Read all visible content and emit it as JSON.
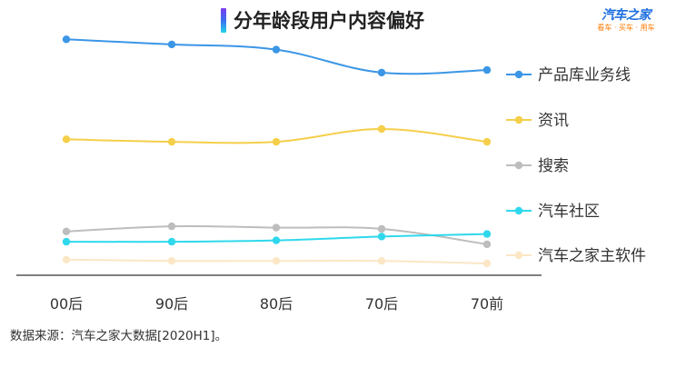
{
  "header": {
    "title": "分年龄段用户内容偏好",
    "brand_name": "汽车之家",
    "brand_tagline": "看车 · 买车 · 用车"
  },
  "footer": {
    "source": "数据来源：汽车之家大数据[2020H1]。"
  },
  "colors": {
    "产品库业务线": "#3b96e6",
    "资讯": "#f5cf4a",
    "搜索": "#bdbdbd",
    "汽车社区": "#2fd8ec",
    "汽车之家主软件": "#fbe7c6"
  },
  "chart_data": {
    "type": "line",
    "title": "分年龄段用户内容偏好",
    "categories": [
      "00后",
      "90后",
      "80后",
      "70后",
      "70前"
    ],
    "x": [
      "00后",
      "90后",
      "80后",
      "70后",
      "70前"
    ],
    "ylim": [
      0,
      100
    ],
    "grid": false,
    "legend_position": "right",
    "series": [
      {
        "name": "产品库业务线",
        "values": [
          96,
          94,
          92,
          83,
          84
        ]
      },
      {
        "name": "资讯",
        "values": [
          57,
          56,
          56,
          61,
          56
        ]
      },
      {
        "name": "搜索",
        "values": [
          21,
          23,
          22.5,
          22,
          16
        ]
      },
      {
        "name": "汽车社区",
        "values": [
          17,
          17,
          17.5,
          19,
          20
        ]
      },
      {
        "name": "汽车之家主软件",
        "values": [
          10,
          9.5,
          9.5,
          9.5,
          8.5
        ]
      }
    ]
  }
}
